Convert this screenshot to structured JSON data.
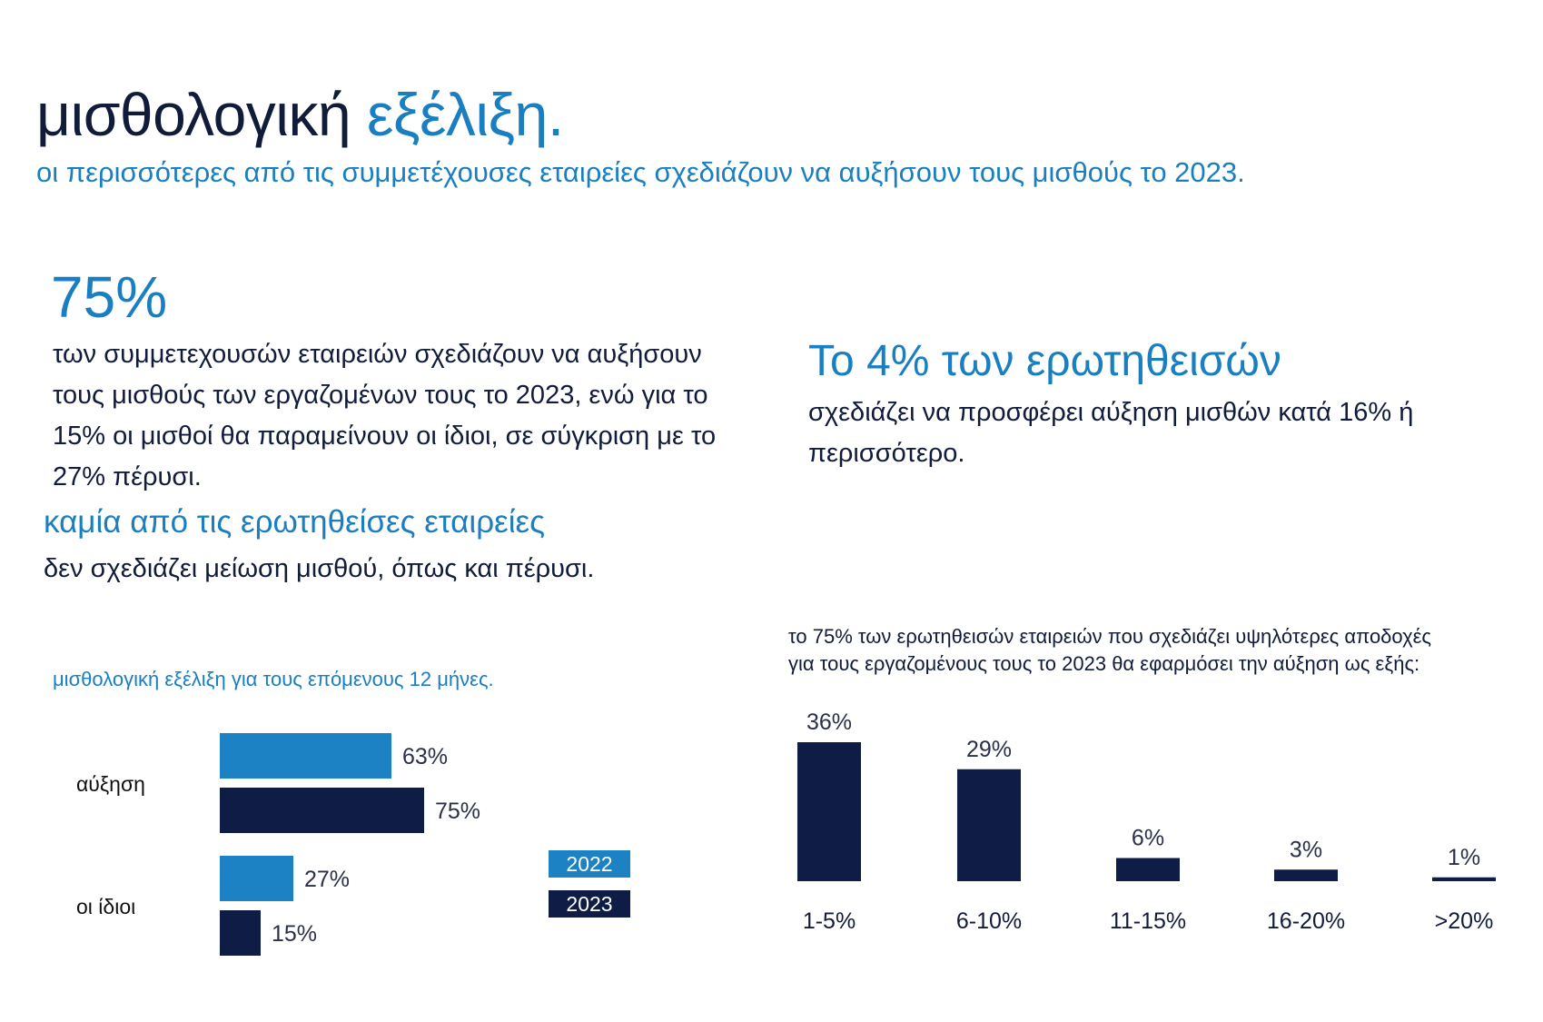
{
  "header": {
    "title_part1": "μισθολογική ",
    "title_part2": "εξέλιξη.",
    "subtitle": "οι περισσότερες από τις συμμετέχουσες εταιρείες σχεδιάζουν να αυξήσουν τους μισθούς το 2023."
  },
  "stat_75": {
    "value": "75%",
    "text": "των συμμετεχουσών εταιρειών σχεδιάζουν να αυξήσουν τους μισθούς των εργαζομένων τους το 2023, ενώ για το 15% οι μισθοί θα παραμείνουν οι ίδιοι, σε σύγκριση με το 27% πέρυσι."
  },
  "none_decrease": {
    "heading": "καμία από τις ερωτηθείσες εταιρείες",
    "text": "δεν σχεδιάζει μείωση μισθού, όπως και πέρυσι."
  },
  "stat_4": {
    "heading": "Το 4% των ερωτηθεισών",
    "text": "σχεδιάζει να προσφέρει αύξηση μισθών κατά 16% ή περισσότερο."
  },
  "colors": {
    "dark_navy": "#111c3a",
    "accent_blue": "#1a7fc1",
    "bar_2022": "#1c82c4",
    "bar_2023": "#0f1c45"
  },
  "chart_data": [
    {
      "type": "bar",
      "orientation": "horizontal",
      "title": "μισθολογική εξέλιξη για τους επόμενους 12 μήνες.",
      "categories": [
        "αύξηση",
        "οι ίδιοι"
      ],
      "series": [
        {
          "name": "2022",
          "values": [
            63,
            27
          ],
          "labels": [
            "63%",
            "27%"
          ]
        },
        {
          "name": "2023",
          "values": [
            75,
            15
          ],
          "labels": [
            "75%",
            "15%"
          ]
        }
      ],
      "xlim": [
        0,
        100
      ],
      "legend": "right",
      "grid": false
    },
    {
      "type": "bar",
      "orientation": "vertical",
      "title": "το 75% των ερωτηθεισών εταιρειών που σχεδιάζει υψηλότερες αποδοχές για τους εργαζομένους τους το 2023 θα εφαρμόσει την αύξηση ως εξής:",
      "title_lines": [
        "το 75% των ερωτηθεισών εταιρειών που σχεδιάζει υψηλότερες αποδοχές",
        "για τους εργαζομένους τους το 2023 θα εφαρμόσει την αύξηση ως εξής:"
      ],
      "categories": [
        "1-5%",
        "6-10%",
        "11-15%",
        "16-20%",
        ">20%"
      ],
      "values": [
        36,
        29,
        6,
        3,
        1
      ],
      "labels": [
        "36%",
        "29%",
        "6%",
        "3%",
        "1%"
      ],
      "ylim": [
        0,
        40
      ],
      "grid": false
    }
  ]
}
